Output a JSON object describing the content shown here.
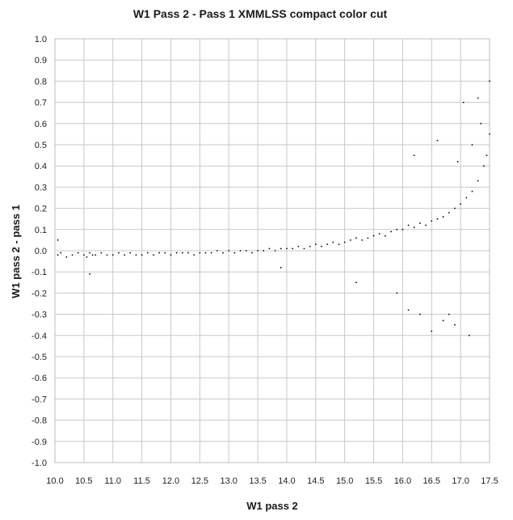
{
  "chart_data": {
    "type": "scatter",
    "title": "W1 Pass 2 - Pass 1 XMMLSS compact color cut",
    "xlabel": "W1 pass 2",
    "ylabel": "W1 pass 2 - pass 1",
    "xlim": [
      10.0,
      17.5
    ],
    "ylim": [
      -1.0,
      1.0
    ],
    "x_ticks": [
      "10.0",
      "10.5",
      "11.0",
      "11.5",
      "12.0",
      "12.5",
      "13.0",
      "13.5",
      "14.0",
      "14.5",
      "15.0",
      "15.5",
      "16.0",
      "16.5",
      "17.0",
      "17.5"
    ],
    "y_ticks": [
      "1.0",
      "0.9",
      "0.8",
      "0.7",
      "0.6",
      "0.5",
      "0.4",
      "0.3",
      "0.2",
      "0.1",
      "0.0",
      "-0.1",
      "-0.2",
      "-0.3",
      "-0.4",
      "-0.5",
      "-0.6",
      "-0.7",
      "-0.8",
      "-0.9",
      "-1.0"
    ],
    "grid": true,
    "legend": "none",
    "marker_color": "#000000",
    "series": [
      {
        "values_x": [
          10.05,
          10.1,
          10.2,
          10.3,
          10.4,
          10.5,
          10.55,
          10.6,
          10.65,
          10.7,
          10.8,
          10.9,
          11.0,
          11.1,
          11.2,
          11.3,
          11.4,
          11.5,
          11.6,
          11.7,
          11.8,
          11.9,
          12.0,
          12.1,
          12.2,
          12.3,
          12.4,
          12.5,
          12.6,
          12.7,
          12.8,
          12.9,
          13.0,
          13.1,
          13.2,
          13.3,
          13.4,
          13.5,
          13.6,
          13.7,
          13.8,
          13.9,
          14.0,
          14.1,
          14.2,
          14.3,
          14.4,
          14.5,
          14.6,
          14.7,
          14.8,
          14.9,
          15.0,
          15.1,
          15.2,
          15.3,
          15.4,
          15.5,
          15.6,
          15.7,
          15.8,
          15.9,
          16.0,
          16.1,
          16.2,
          16.3,
          16.4,
          16.5,
          16.6,
          16.7,
          16.8,
          16.9,
          17.0,
          17.1,
          17.2,
          17.3,
          17.4,
          17.45,
          17.5,
          10.05,
          10.6,
          13.9,
          15.2,
          15.9,
          16.1,
          16.3,
          16.5,
          16.7,
          16.9,
          17.05,
          17.15,
          17.3,
          17.35,
          17.5,
          16.2,
          16.6,
          16.8,
          17.2,
          16.95
        ],
        "values_y": [
          -0.02,
          -0.01,
          -0.03,
          -0.02,
          -0.01,
          -0.02,
          -0.03,
          -0.01,
          -0.02,
          -0.02,
          -0.01,
          -0.02,
          -0.02,
          -0.01,
          -0.02,
          -0.01,
          -0.02,
          -0.02,
          -0.01,
          -0.02,
          -0.01,
          -0.01,
          -0.02,
          -0.01,
          -0.01,
          -0.01,
          -0.02,
          -0.01,
          -0.01,
          -0.01,
          0.0,
          -0.01,
          0.0,
          -0.01,
          0.0,
          0.0,
          -0.01,
          0.0,
          0.0,
          0.01,
          0.0,
          0.01,
          0.01,
          0.01,
          0.02,
          0.01,
          0.02,
          0.03,
          0.02,
          0.03,
          0.04,
          0.03,
          0.04,
          0.05,
          0.06,
          0.05,
          0.06,
          0.07,
          0.08,
          0.07,
          0.09,
          0.1,
          0.1,
          0.12,
          0.11,
          0.13,
          0.12,
          0.14,
          0.15,
          0.16,
          0.18,
          0.2,
          0.22,
          0.25,
          0.28,
          0.33,
          0.4,
          0.45,
          0.55,
          0.05,
          -0.11,
          -0.08,
          -0.15,
          -0.2,
          -0.28,
          -0.3,
          -0.38,
          -0.33,
          -0.35,
          0.7,
          -0.4,
          0.72,
          0.6,
          0.8,
          0.45,
          0.52,
          -0.3,
          0.5,
          0.42
        ]
      }
    ]
  }
}
